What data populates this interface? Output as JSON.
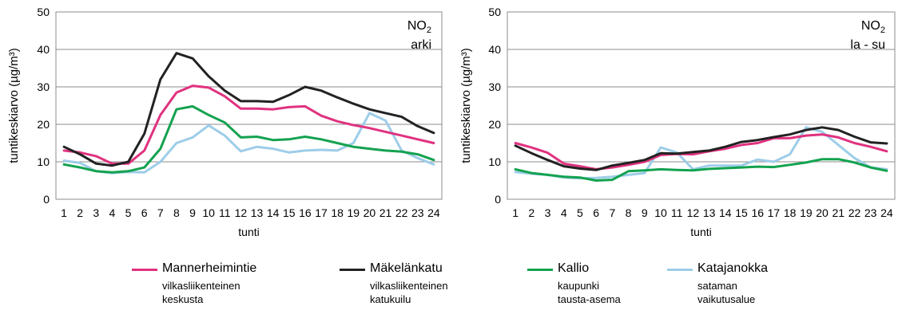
{
  "chart_data": [
    {
      "type": "line",
      "title": "",
      "annotation": {
        "main": "NO",
        "sub": "2",
        "line2": "arki"
      },
      "xlabel": "tunti",
      "ylabel": "tuntikeskiarvo (µg/m³)",
      "ylim": [
        0,
        50
      ],
      "yticks": [
        0,
        10,
        20,
        30,
        40,
        50
      ],
      "x": [
        1,
        2,
        3,
        4,
        5,
        6,
        7,
        8,
        9,
        10,
        11,
        12,
        13,
        14,
        15,
        16,
        17,
        18,
        19,
        20,
        21,
        22,
        23,
        24
      ],
      "grid": "horizontal",
      "series": [
        {
          "name": "Mannerheimintie",
          "color": "#e0327f",
          "values": [
            13,
            12.5,
            11.5,
            9.5,
            9.5,
            13,
            22.5,
            28.5,
            30.3,
            29.8,
            27.5,
            24.2,
            24.2,
            24,
            24.6,
            24.8,
            22.3,
            20.8,
            19.8,
            19,
            18,
            17,
            16,
            15
          ]
        },
        {
          "name": "Mäkelänkatu",
          "color": "#222222",
          "values": [
            14,
            12,
            9.5,
            9,
            10,
            17.5,
            32,
            39,
            37.6,
            32.8,
            29,
            26.2,
            26.2,
            26,
            27.8,
            30,
            29,
            27.2,
            25.5,
            24,
            23,
            22,
            19.5,
            17.7
          ]
        },
        {
          "name": "Kallio",
          "color": "#13a24f",
          "values": [
            9.3,
            8.5,
            7.5,
            7.2,
            7.5,
            8.5,
            13.5,
            24,
            24.8,
            22.5,
            20.5,
            16.5,
            16.7,
            15.8,
            16,
            16.7,
            16,
            15,
            14,
            13.5,
            13,
            12.7,
            12,
            10.5
          ]
        },
        {
          "name": "Katajanokka",
          "color": "#9dcde8",
          "values": [
            10.3,
            9.7,
            7.5,
            7,
            7.3,
            7.2,
            10,
            15,
            16.5,
            19.7,
            17,
            12.8,
            14,
            13.5,
            12.5,
            13,
            13.2,
            13,
            15,
            23,
            21,
            13,
            11,
            9.3
          ]
        }
      ]
    },
    {
      "type": "line",
      "title": "",
      "annotation": {
        "main": "NO",
        "sub": "2",
        "line2": "la - su"
      },
      "xlabel": "tunti",
      "ylabel": "tuntikeskiarvo (µg/m³)",
      "ylim": [
        0,
        50
      ],
      "yticks": [
        0,
        10,
        20,
        30,
        40,
        50
      ],
      "x": [
        1,
        2,
        3,
        4,
        5,
        6,
        7,
        8,
        9,
        10,
        11,
        12,
        13,
        14,
        15,
        16,
        17,
        18,
        19,
        20,
        21,
        22,
        23,
        24
      ],
      "grid": "horizontal",
      "series": [
        {
          "name": "Mannerheimintie",
          "color": "#e0327f",
          "values": [
            15,
            13.8,
            12.4,
            9.5,
            8.8,
            8,
            8.5,
            9.2,
            10,
            11.8,
            12.1,
            12,
            12.8,
            13.5,
            14.5,
            15,
            16.3,
            16.3,
            17,
            17.3,
            16.5,
            15,
            14,
            12.8
          ]
        },
        {
          "name": "Mäkelänkatu",
          "color": "#222222",
          "values": [
            14.3,
            12.3,
            10.5,
            8.8,
            8.2,
            7.8,
            9,
            9.7,
            10.5,
            12.3,
            12.2,
            12.6,
            13,
            14,
            15.3,
            15.8,
            16.6,
            17.3,
            18.5,
            19.2,
            18.5,
            16.7,
            15.2,
            14.9
          ]
        },
        {
          "name": "Kallio",
          "color": "#13a24f",
          "values": [
            8,
            7,
            6.5,
            6,
            5.8,
            5,
            5.2,
            7.5,
            7.7,
            8,
            7.8,
            7.7,
            8.1,
            8.3,
            8.5,
            8.7,
            8.6,
            9.2,
            9.8,
            10.7,
            10.7,
            9.8,
            8.5,
            7.6
          ]
        },
        {
          "name": "Katajanokka",
          "color": "#9dcde8",
          "values": [
            7.3,
            6.8,
            6.5,
            5.8,
            5.6,
            5.7,
            6,
            6.5,
            7,
            13.8,
            12.5,
            8,
            9,
            9,
            9,
            10.6,
            10,
            12,
            19.2,
            18,
            14.5,
            11,
            8.5,
            8
          ]
        }
      ]
    }
  ],
  "legend": [
    {
      "name": "Mannerheimintie",
      "desc1": "vilkasliikenteinen",
      "desc2": "keskusta",
      "color": "#e0327f"
    },
    {
      "name": "Mäkelänkatu",
      "desc1": "vilkasliikenteinen",
      "desc2": "katukuilu",
      "color": "#222222"
    },
    {
      "name": "Kallio",
      "desc1": "kaupunki",
      "desc2": "tausta-asema",
      "color": "#13a24f"
    },
    {
      "name": "Katajanokka",
      "desc1": "sataman",
      "desc2": "vaikutusalue",
      "color": "#9dcde8"
    }
  ]
}
